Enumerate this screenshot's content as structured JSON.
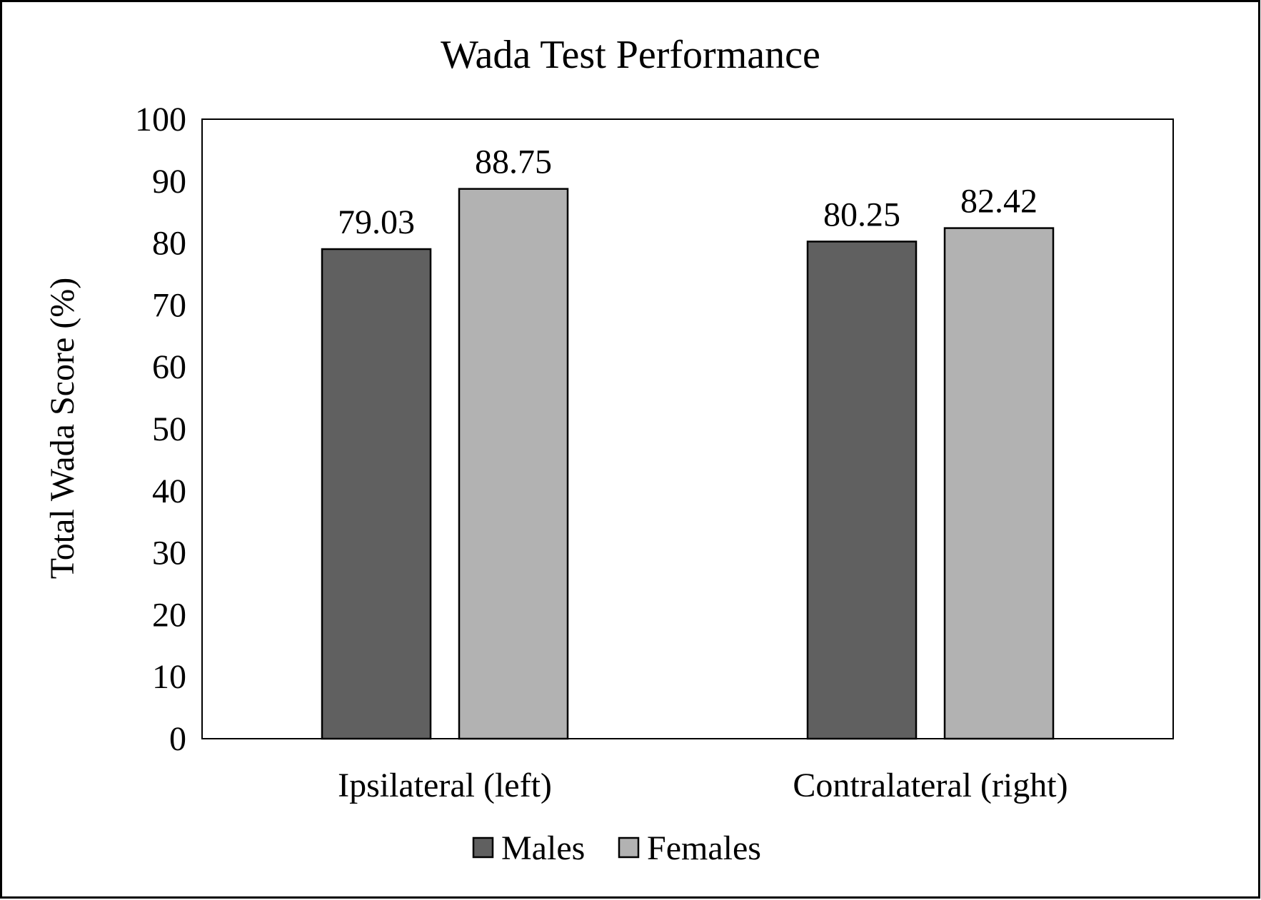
{
  "chart_data": {
    "type": "bar",
    "title": "Wada Test Performance",
    "xlabel": "",
    "ylabel": "Total Wada Score (%)",
    "ylim": [
      0,
      100
    ],
    "yticks": [
      "0",
      "10",
      "20",
      "30",
      "40",
      "50",
      "60",
      "70",
      "80",
      "90",
      "100"
    ],
    "categories": [
      "Ipsilateral (left)",
      "Contralateral (right)"
    ],
    "series": [
      {
        "name": "Males",
        "color": "#606060",
        "values": [
          79.03,
          80.25
        ],
        "labels": [
          "79.03",
          "80.25"
        ]
      },
      {
        "name": "Females",
        "color": "#b2b2b2",
        "values": [
          88.75,
          82.42
        ],
        "labels": [
          "88.75",
          "82.42"
        ]
      }
    ],
    "grid": false,
    "legend": "bottom-center"
  }
}
